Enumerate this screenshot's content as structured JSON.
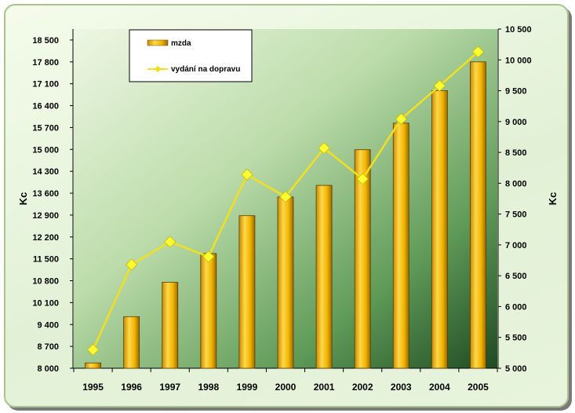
{
  "chart_data": {
    "type": "bar",
    "categories": [
      "1995",
      "1996",
      "1997",
      "1998",
      "1999",
      "2000",
      "2001",
      "2002",
      "2003",
      "2004",
      "2005"
    ],
    "series": [
      {
        "name": "mzda",
        "type": "bar",
        "axis": "left",
        "color": "#f0b400",
        "values": [
          8170,
          9650,
          10750,
          11670,
          12880,
          13480,
          13850,
          14990,
          15840,
          16880,
          17800
        ]
      },
      {
        "name": "vydání na dopravu",
        "type": "line",
        "axis": "right",
        "color": "#f2e020",
        "values": [
          5300,
          6680,
          7050,
          6810,
          8140,
          7780,
          8570,
          8070,
          9040,
          9580,
          10130
        ]
      }
    ],
    "y_left": {
      "label": "Kc",
      "ylim": [
        8000,
        18850
      ],
      "ticks": [
        "8 000",
        "8 700",
        "9 400",
        "10 100",
        "10 800",
        "11 500",
        "12 200",
        "12 900",
        "13 600",
        "14 300",
        "15 000",
        "15 700",
        "16 400",
        "17 100",
        "17 800",
        "18 500"
      ]
    },
    "y_right": {
      "label": "Kc",
      "ylim": [
        5000,
        10500
      ],
      "ticks": [
        "5 000",
        "5 500",
        "6 000",
        "6 500",
        "7 000",
        "7 500",
        "8 000",
        "8 500",
        "9 000",
        "9 500",
        "10 000",
        "10 500"
      ]
    },
    "legend": {
      "position": "top-left",
      "entries": [
        "mzda",
        "vydání na dopravu"
      ]
    },
    "grid": false
  }
}
